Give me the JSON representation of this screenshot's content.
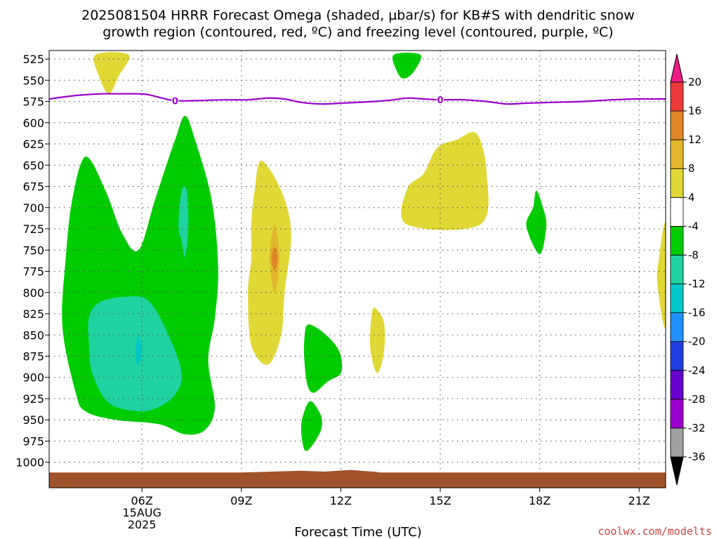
{
  "title": {
    "line1": "2025081504 HRRR Forecast Omega (shaded, µbar/s) for KB#S with dendritic snow",
    "line2": "growth region (contoured, red, ºC) and freezing level (contoured, purple, ºC)"
  },
  "credit": {
    "text": "coolwx.com/modelts",
    "color": "#d04040"
  },
  "chart_data": {
    "type": "time-height contour",
    "xlabel": "Forecast Time (UTC)",
    "x_range_hours": [
      3.2,
      21.8
    ],
    "x_ticks": [
      {
        "h": 6,
        "label": "06Z",
        "sub1": "15AUG",
        "sub2": "2025"
      },
      {
        "h": 9,
        "label": "09Z",
        "sub1": "",
        "sub2": ""
      },
      {
        "h": 12,
        "label": "12Z",
        "sub1": "",
        "sub2": ""
      },
      {
        "h": 15,
        "label": "15Z",
        "sub1": "",
        "sub2": ""
      },
      {
        "h": 18,
        "label": "18Z",
        "sub1": "",
        "sub2": ""
      },
      {
        "h": 21,
        "label": "21Z",
        "sub1": "",
        "sub2": ""
      }
    ],
    "y_range_hpa": [
      515,
      1030
    ],
    "y_ticks": [
      525,
      550,
      575,
      600,
      625,
      650,
      675,
      700,
      725,
      750,
      775,
      800,
      825,
      850,
      875,
      900,
      925,
      950,
      975,
      1000
    ],
    "grid": true,
    "colorbar": {
      "colors": [
        "#000000",
        "#a0a0a0",
        "#9900cc",
        "#6600cc",
        "#1f3fe0",
        "#1f90ff",
        "#00c8c8",
        "#20d2a0",
        "#00cc00",
        "#ffffff",
        "#e0d835",
        "#e2b62c",
        "#e08628",
        "#ee3a3a",
        "#ee1c87"
      ],
      "labels": [
        "-36",
        "-32",
        "-28",
        "-24",
        "-20",
        "-16",
        "-12",
        "-8",
        "-4",
        "4",
        "8",
        "12",
        "16",
        "20"
      ]
    },
    "omega_regions": [
      {
        "level": 4,
        "color": "#e0d835",
        "points": [
          [
            4.6,
            520
          ],
          [
            5.6,
            520
          ],
          [
            5.3,
            545
          ],
          [
            5.0,
            566
          ],
          [
            4.7,
            545
          ]
        ]
      },
      {
        "level": -4,
        "color": "#00cc00",
        "points": [
          [
            13.6,
            520
          ],
          [
            14.4,
            520
          ],
          [
            14.2,
            540
          ],
          [
            13.9,
            548
          ],
          [
            13.7,
            540
          ]
        ]
      },
      {
        "level": -4,
        "color": "#00cc00",
        "points": [
          [
            4.0,
            918
          ],
          [
            3.6,
            840
          ],
          [
            3.7,
            760
          ],
          [
            3.9,
            690
          ],
          [
            4.3,
            640
          ],
          [
            4.9,
            680
          ],
          [
            5.4,
            730
          ],
          [
            5.9,
            750
          ],
          [
            6.4,
            690
          ],
          [
            7.0,
            620
          ],
          [
            7.3,
            592
          ],
          [
            7.6,
            620
          ],
          [
            8.1,
            690
          ],
          [
            8.3,
            770
          ],
          [
            8.2,
            830
          ],
          [
            8.0,
            880
          ],
          [
            8.2,
            935
          ],
          [
            7.9,
            962
          ],
          [
            7.3,
            967
          ],
          [
            6.5,
            955
          ],
          [
            5.2,
            950
          ],
          [
            4.3,
            940
          ]
        ]
      },
      {
        "level": -8,
        "color": "#20d2a0",
        "points": [
          [
            4.4,
            830
          ],
          [
            4.7,
            812
          ],
          [
            5.5,
            805
          ],
          [
            6.2,
            810
          ],
          [
            6.8,
            850
          ],
          [
            7.2,
            895
          ],
          [
            7.0,
            920
          ],
          [
            6.5,
            935
          ],
          [
            5.9,
            940
          ],
          [
            5.0,
            930
          ],
          [
            4.5,
            895
          ],
          [
            4.4,
            860
          ]
        ]
      },
      {
        "level": -12,
        "color": "#00c8c8",
        "points": [
          [
            5.9,
            850
          ],
          [
            6.0,
            865
          ],
          [
            5.95,
            880
          ],
          [
            5.85,
            885
          ],
          [
            5.8,
            870
          ],
          [
            5.85,
            855
          ]
        ]
      },
      {
        "level": -8,
        "color": "#20d2a0",
        "points": [
          [
            7.2,
            680
          ],
          [
            7.35,
            680
          ],
          [
            7.4,
            720
          ],
          [
            7.3,
            758
          ],
          [
            7.2,
            740
          ],
          [
            7.1,
            720
          ]
        ]
      },
      {
        "level": 4,
        "color": "#e0d835",
        "points": [
          [
            9.6,
            645
          ],
          [
            10.2,
            680
          ],
          [
            10.5,
            730
          ],
          [
            10.3,
            800
          ],
          [
            10.2,
            850
          ],
          [
            9.8,
            885
          ],
          [
            9.3,
            862
          ],
          [
            9.2,
            800
          ],
          [
            9.3,
            760
          ],
          [
            9.3,
            720
          ],
          [
            9.4,
            680
          ]
        ]
      },
      {
        "level": 8,
        "color": "#e2b62c",
        "points": [
          [
            10.0,
            720
          ],
          [
            10.15,
            760
          ],
          [
            10.0,
            800
          ],
          [
            9.85,
            760
          ]
        ]
      },
      {
        "level": 12,
        "color": "#e08628",
        "points": [
          [
            10.0,
            746
          ],
          [
            10.1,
            760
          ],
          [
            10.0,
            774
          ],
          [
            9.9,
            760
          ]
        ]
      },
      {
        "level": -4,
        "color": "#00cc00",
        "points": [
          [
            11.0,
            838
          ],
          [
            11.4,
            845
          ],
          [
            11.8,
            860
          ],
          [
            12.0,
            875
          ],
          [
            12.0,
            895
          ],
          [
            11.6,
            905
          ],
          [
            11.2,
            918
          ],
          [
            11.0,
            910
          ],
          [
            10.9,
            880
          ],
          [
            10.9,
            855
          ]
        ]
      },
      {
        "level": -4,
        "color": "#00cc00",
        "points": [
          [
            11.1,
            928
          ],
          [
            11.4,
            945
          ],
          [
            11.4,
            962
          ],
          [
            11.1,
            982
          ],
          [
            10.9,
            985
          ],
          [
            10.8,
            960
          ],
          [
            10.9,
            940
          ]
        ]
      },
      {
        "level": 4,
        "color": "#e0d835",
        "points": [
          [
            13.0,
            818
          ],
          [
            13.3,
            835
          ],
          [
            13.3,
            870
          ],
          [
            13.1,
            895
          ],
          [
            12.9,
            870
          ],
          [
            12.9,
            838
          ]
        ]
      },
      {
        "level": 4,
        "color": "#e0d835",
        "points": [
          [
            14.0,
            678
          ],
          [
            14.5,
            660
          ],
          [
            14.9,
            630
          ],
          [
            15.5,
            620
          ],
          [
            16.1,
            613
          ],
          [
            16.4,
            660
          ],
          [
            16.2,
            720
          ],
          [
            14.0,
            720
          ]
        ]
      },
      {
        "level": -4,
        "color": "#00cc00",
        "points": [
          [
            17.9,
            680
          ],
          [
            18.1,
            700
          ],
          [
            18.2,
            722
          ],
          [
            18.0,
            755
          ],
          [
            17.6,
            722
          ],
          [
            17.8,
            700
          ]
        ]
      },
      {
        "level": 4,
        "color": "#e0d835",
        "points": [
          [
            21.8,
            720
          ],
          [
            21.8,
            840
          ],
          [
            21.55,
            790
          ],
          [
            21.6,
            760
          ]
        ]
      }
    ],
    "freezing_level": {
      "label": "0",
      "label_hours": [
        7.0,
        15.0
      ],
      "hours": [
        3.2,
        4.0,
        4.8,
        5.3,
        5.9,
        6.2,
        6.6,
        7.0,
        7.6,
        8.5,
        9.2,
        9.8,
        10.3,
        10.8,
        11.4,
        12.0,
        13.0,
        13.6,
        14.0,
        14.5,
        15.0,
        15.7,
        16.4,
        17.0,
        17.6,
        18.4,
        19.3,
        20.2,
        20.9,
        21.4,
        21.8
      ],
      "hpa": [
        572,
        568,
        566,
        566,
        566,
        567,
        571,
        574,
        574,
        573,
        573,
        571,
        572,
        576,
        578,
        577,
        575,
        573,
        571,
        572,
        573,
        573,
        575,
        578,
        577,
        576,
        575,
        573,
        572,
        572,
        572
      ]
    },
    "terrain": {
      "color": "#a0522d",
      "hours": [
        3.2,
        7.0,
        9.0,
        10.8,
        11.5,
        12.3,
        13.0,
        13.2,
        15.0,
        21.8
      ],
      "hpa": [
        1012,
        1012,
        1012,
        1010,
        1011,
        1009,
        1011,
        1012,
        1012,
        1012
      ]
    }
  }
}
